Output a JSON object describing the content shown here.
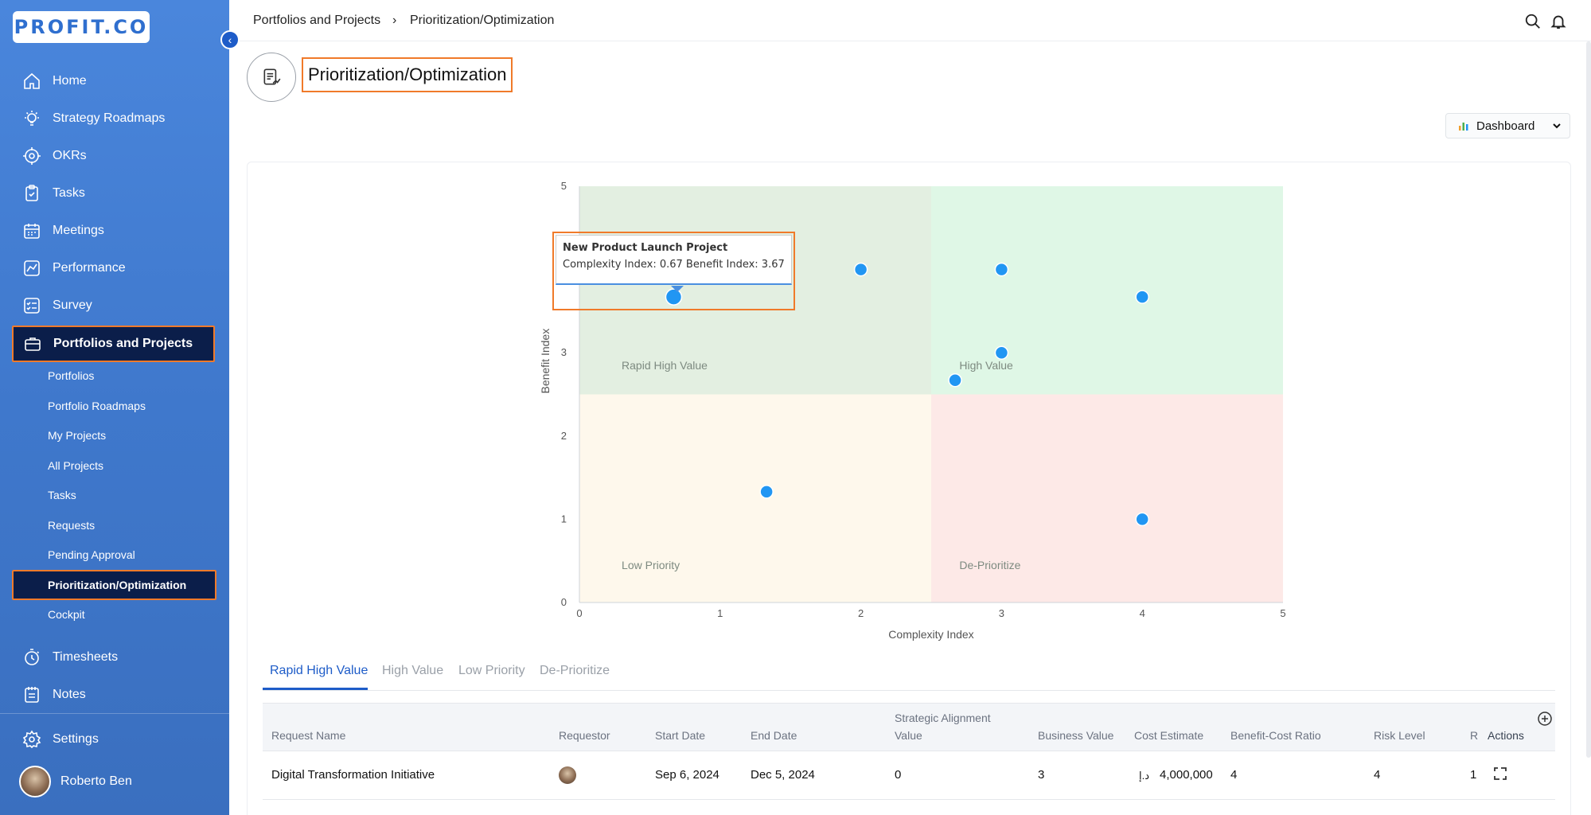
{
  "app": {
    "logo_text": "PROFIT.CO"
  },
  "sidebar": {
    "items": [
      {
        "label": "Home",
        "icon": "home-icon"
      },
      {
        "label": "Strategy Roadmaps",
        "icon": "bulb-icon"
      },
      {
        "label": "OKRs",
        "icon": "target-icon"
      },
      {
        "label": "Tasks",
        "icon": "clipboard-icon"
      },
      {
        "label": "Meetings",
        "icon": "calendar-icon"
      },
      {
        "label": "Performance",
        "icon": "chart-line-icon"
      },
      {
        "label": "Survey",
        "icon": "survey-icon"
      },
      {
        "label": "Portfolios and Projects",
        "icon": "briefcase-icon"
      }
    ],
    "sub_items": [
      "Portfolios",
      "Portfolio Roadmaps",
      "My Projects",
      "All Projects",
      "Tasks",
      "Requests",
      "Pending Approval",
      "Prioritization/Optimization",
      "Cockpit"
    ],
    "bottom_items": [
      {
        "label": "Timesheets",
        "icon": "stopwatch-icon"
      },
      {
        "label": "Notes",
        "icon": "notes-icon"
      },
      {
        "label": "Settings",
        "icon": "gear-icon"
      }
    ],
    "user": {
      "name": "Roberto Ben"
    }
  },
  "breadcrumb": {
    "parent": "Portfolios and Projects",
    "separator": "›",
    "current": "Prioritization/Optimization"
  },
  "page": {
    "title": "Prioritization/Optimization",
    "view_button": "Dashboard"
  },
  "chart_data": {
    "type": "scatter",
    "xlabel": "Complexity Index",
    "ylabel": "Benefit Index",
    "xlim": [
      0,
      5
    ],
    "ylim": [
      0,
      5
    ],
    "xticks": [
      "0",
      "1",
      "2",
      "3",
      "4",
      "5"
    ],
    "yticks": [
      "0",
      "1",
      "2",
      "3",
      "5"
    ],
    "quadrants": [
      {
        "label": "Rapid High Value",
        "color": "#e3efe1"
      },
      {
        "label": "High Value",
        "color": "#dff7e6"
      },
      {
        "label": "Low Priority",
        "color": "#fef8ec"
      },
      {
        "label": "De-Prioritize",
        "color": "#fde9e7"
      }
    ],
    "points": [
      {
        "x": 0.67,
        "y": 3.67
      },
      {
        "x": 2.0,
        "y": 4.0
      },
      {
        "x": 3.0,
        "y": 4.0
      },
      {
        "x": 4.0,
        "y": 3.67
      },
      {
        "x": 3.0,
        "y": 3.0
      },
      {
        "x": 2.67,
        "y": 2.67
      },
      {
        "x": 1.33,
        "y": 1.33
      },
      {
        "x": 4.0,
        "y": 1.0
      }
    ],
    "point_color": "#2196f3"
  },
  "tooltip": {
    "title": "New Product Launch Project",
    "body": "Complexity Index: 0.67 Benefit Index: 3.67"
  },
  "tabs": [
    "Rapid High Value",
    "High Value",
    "Low Priority",
    "De-Prioritize"
  ],
  "table": {
    "columns": [
      "Request Name",
      "Requestor",
      "Start Date",
      "End Date",
      "Strategic Alignment",
      "Value",
      "Business Value",
      "Cost Estimate",
      "Benefit-Cost Ratio",
      "Risk Level",
      "Re",
      "Actions"
    ],
    "rows": [
      {
        "name": "Digital Transformation Initiative",
        "start": "Sep 6, 2024",
        "end": "Dec 5, 2024",
        "alignment": "0",
        "business": "3",
        "currency": "د.إ",
        "cost": "4,000,000",
        "bcr": "4",
        "risk": "4",
        "re": "1"
      }
    ]
  }
}
